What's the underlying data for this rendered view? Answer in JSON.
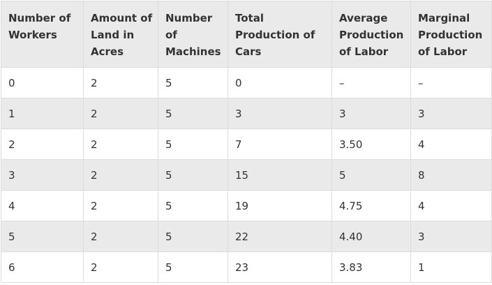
{
  "table": {
    "headers": [
      "Number of Workers",
      "Amount of Land in Acres",
      "Number of Machines",
      "Total Production of Cars",
      "Average Production of Labor",
      "Marginal Production of Labor"
    ],
    "rows": [
      [
        "0",
        "2",
        "5",
        "0",
        "–",
        "–"
      ],
      [
        "1",
        "2",
        "5",
        "3",
        "3",
        "3"
      ],
      [
        "2",
        "2",
        "5",
        "7",
        "3.50",
        "4"
      ],
      [
        "3",
        "2",
        "5",
        "15",
        "5",
        "8"
      ],
      [
        "4",
        "2",
        "5",
        "19",
        "4.75",
        "4"
      ],
      [
        "5",
        "2",
        "5",
        "22",
        "4.40",
        "3"
      ],
      [
        "6",
        "2",
        "5",
        "23",
        "3.83",
        "1"
      ]
    ]
  }
}
